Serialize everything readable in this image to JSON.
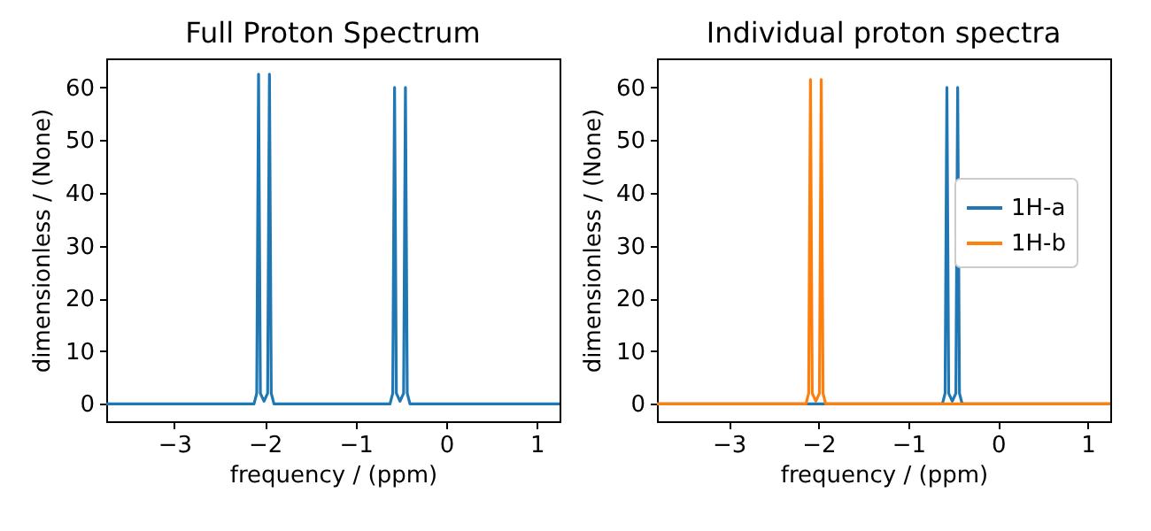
{
  "chart_data": [
    {
      "type": "line",
      "title": "Full Proton Spectrum",
      "xlabel": "frequency / (ppm)",
      "ylabel": "dimensionless / (None)",
      "xlim": [
        -3.75,
        1.25
      ],
      "ylim": [
        -3.3,
        65.5
      ],
      "xticks": [
        {
          "value": -3,
          "label": "−3"
        },
        {
          "value": -2,
          "label": "−2"
        },
        {
          "value": -1,
          "label": "−1"
        },
        {
          "value": 0,
          "label": "0"
        },
        {
          "value": 1,
          "label": "1"
        }
      ],
      "yticks": [
        0,
        10,
        20,
        30,
        40,
        50,
        60
      ],
      "grid": false,
      "series": [
        {
          "color": "#1f77b4",
          "x": [
            -3.75,
            -2.12,
            -2.09,
            -2.07,
            -2.05,
            -2.01,
            -1.97,
            -1.95,
            -1.93,
            -1.9,
            -0.62,
            -0.59,
            -0.57,
            -0.55,
            -0.51,
            -0.47,
            -0.45,
            -0.43,
            -0.4,
            1.25
          ],
          "values": [
            0,
            0,
            2,
            62.5,
            2,
            0.5,
            2,
            62.5,
            2,
            0,
            0,
            2,
            60,
            2,
            0.5,
            2,
            60,
            2,
            0,
            0
          ]
        }
      ]
    },
    {
      "type": "line",
      "title": "Individual proton spectra",
      "xlabel": "frequency / (ppm)",
      "ylabel": "dimensionless / (None)",
      "xlim": [
        -3.8,
        1.25
      ],
      "ylim": [
        -3.3,
        65.5
      ],
      "xticks": [
        {
          "value": -3,
          "label": "−3"
        },
        {
          "value": -2,
          "label": "−2"
        },
        {
          "value": -1,
          "label": "−1"
        },
        {
          "value": 0,
          "label": "0"
        },
        {
          "value": 1,
          "label": "1"
        }
      ],
      "yticks": [
        0,
        10,
        20,
        30,
        40,
        50,
        60
      ],
      "grid": false,
      "legend": "right",
      "series": [
        {
          "name": "1H-a",
          "color": "#1f77b4",
          "x": [
            -3.8,
            -0.62,
            -0.59,
            -0.57,
            -0.55,
            -0.51,
            -0.47,
            -0.45,
            -0.43,
            -0.4,
            1.25
          ],
          "values": [
            0,
            0,
            2,
            60,
            2,
            0.5,
            2,
            60,
            2,
            0,
            0
          ]
        },
        {
          "name": "1H-b",
          "color": "#ff7f0e",
          "x": [
            -3.8,
            -2.14,
            -2.11,
            -2.09,
            -2.07,
            -2.03,
            -1.99,
            -1.97,
            -1.95,
            -1.92,
            1.25
          ],
          "values": [
            0,
            0,
            2,
            61.5,
            2,
            0.5,
            2,
            61.5,
            2,
            0,
            0
          ]
        }
      ]
    }
  ]
}
